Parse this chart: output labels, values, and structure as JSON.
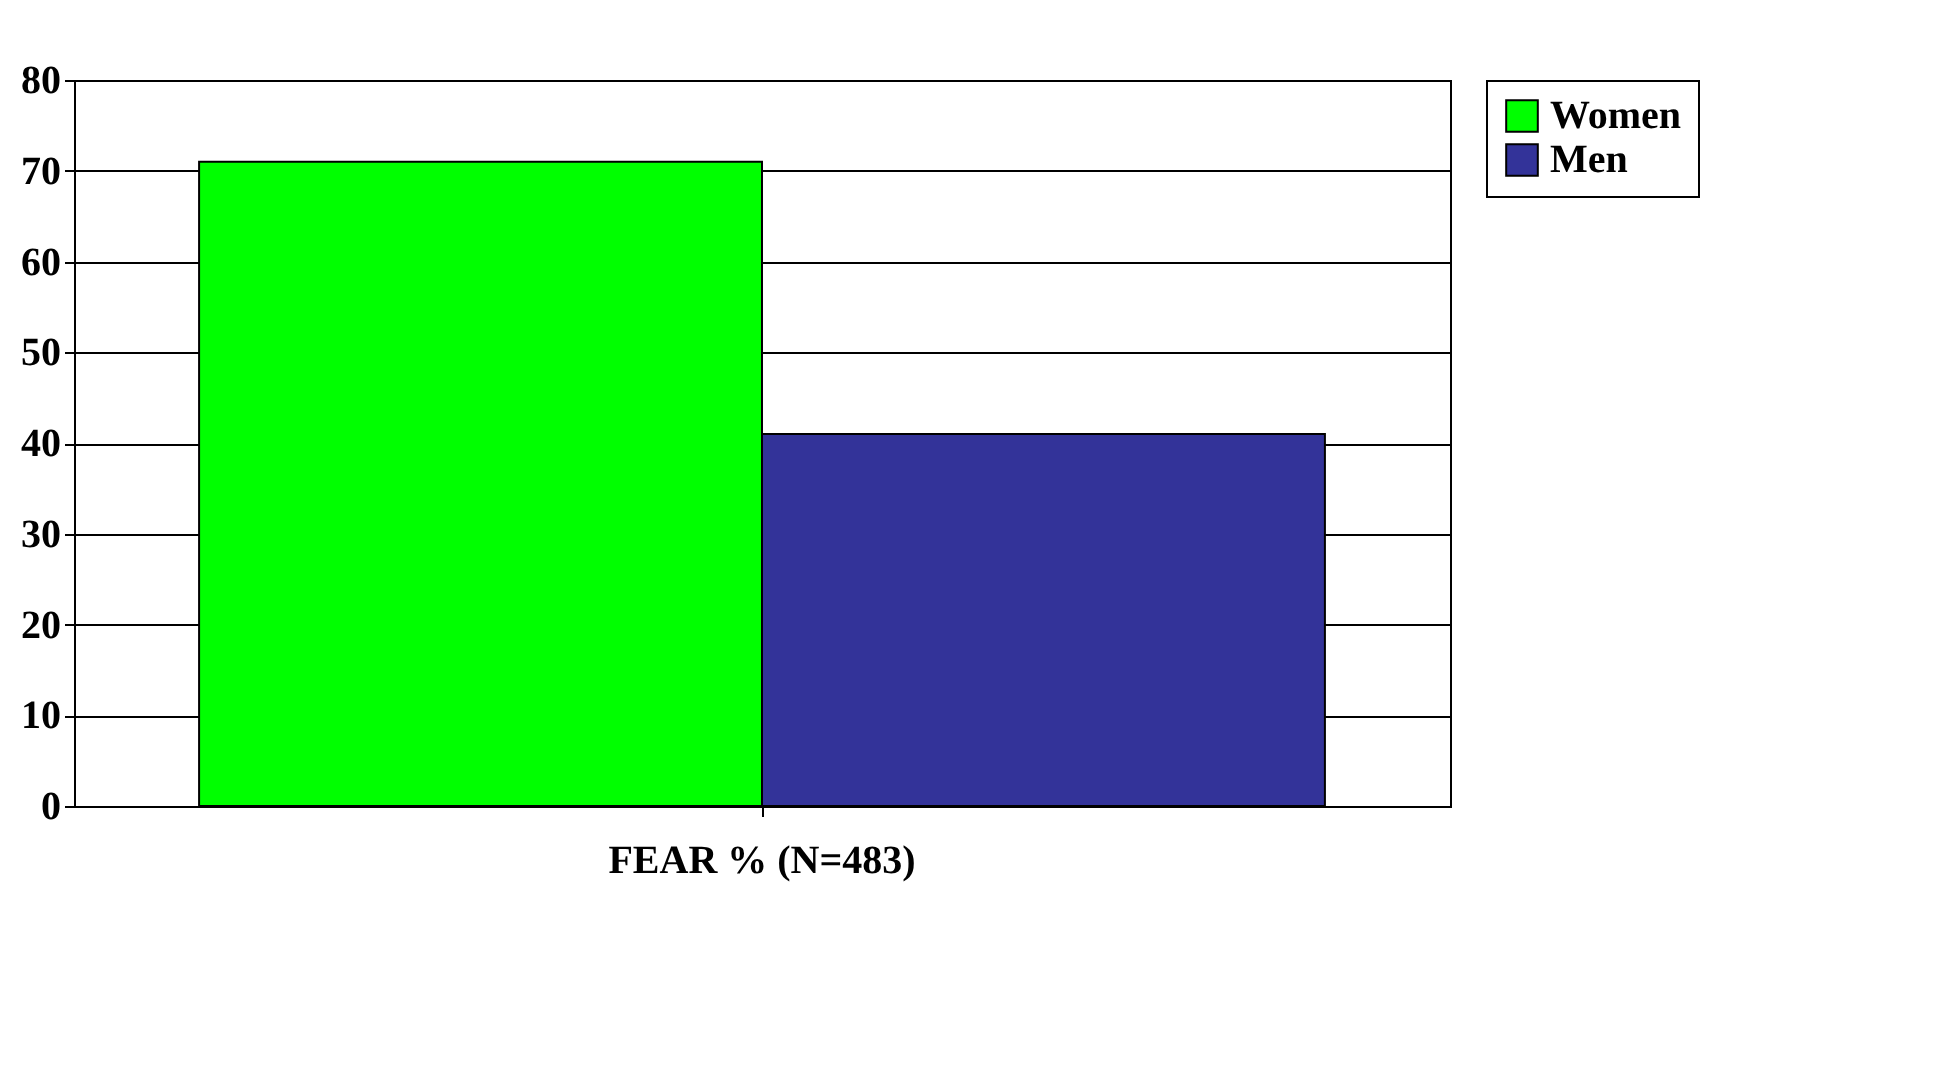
{
  "chart_data": {
    "type": "bar",
    "categories": [
      "FEAR % (N=483)"
    ],
    "series": [
      {
        "name": "Women",
        "color": "#00ff00",
        "values": [
          71
        ]
      },
      {
        "name": "Men",
        "color": "#333399",
        "values": [
          41
        ]
      }
    ],
    "ylim": [
      0,
      80
    ],
    "yticks": [
      0,
      10,
      20,
      30,
      40,
      50,
      60,
      70,
      80
    ],
    "grid": "y",
    "legend": "right"
  }
}
